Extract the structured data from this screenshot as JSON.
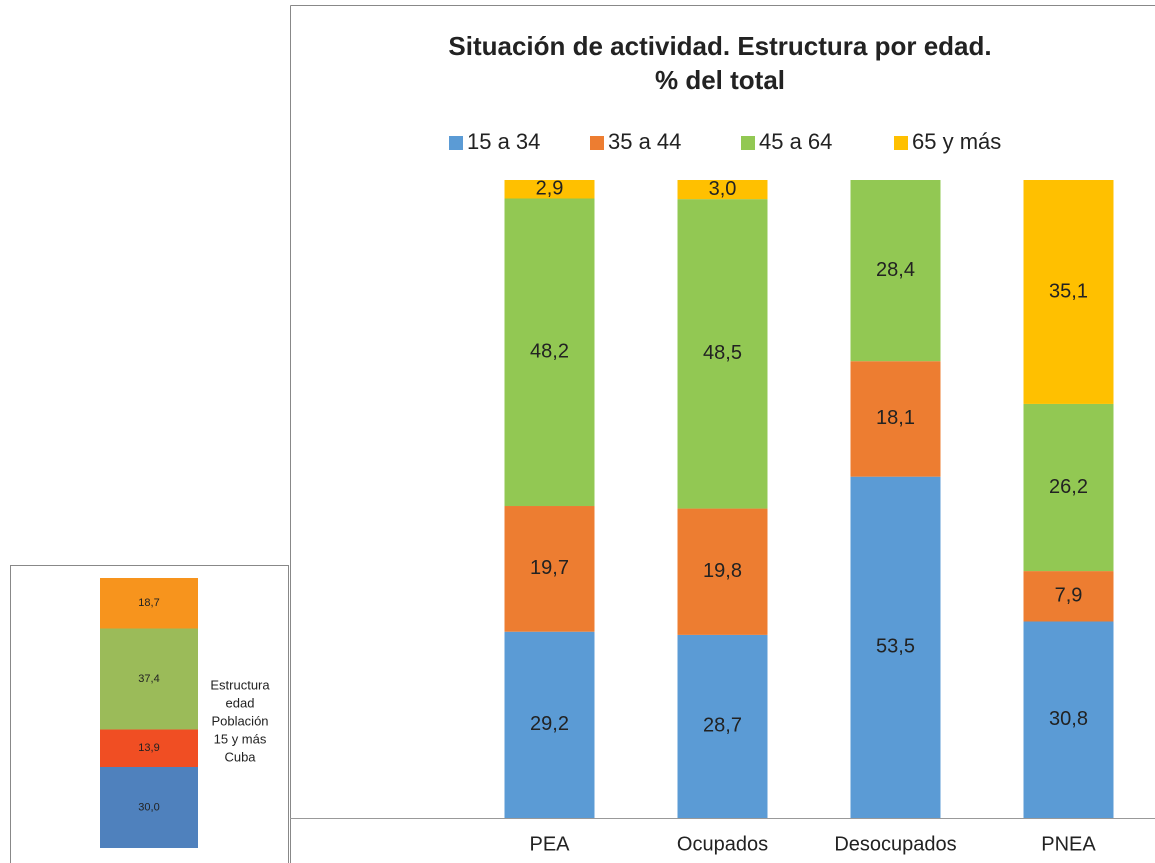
{
  "chart_data": [
    {
      "type": "bar",
      "stacked": true,
      "title": [
        "Situación de actividad. Estructura por edad.",
        "% del total"
      ],
      "categories": [
        null,
        "PEA",
        "Ocupados",
        "Desocupados",
        "PNEA"
      ],
      "ylim": [
        0,
        100
      ],
      "legend": "top",
      "series": [
        {
          "name": "15 a 34",
          "color": "#5b9bd5",
          "values": [
            null,
            29.2,
            28.7,
            53.5,
            30.8
          ],
          "value_labels": [
            null,
            "29,2",
            "28,7",
            "53,5",
            "30,8"
          ]
        },
        {
          "name": "35 a 44",
          "color": "#ed7d31",
          "values": [
            null,
            19.7,
            19.8,
            18.1,
            7.9
          ],
          "value_labels": [
            null,
            "19,7",
            "19,8",
            "18,1",
            "7,9"
          ]
        },
        {
          "name": "45 a 64",
          "color": "#92c853",
          "values": [
            null,
            48.2,
            48.5,
            28.4,
            26.2
          ],
          "value_labels": [
            null,
            "48,2",
            "48,5",
            "28,4",
            "26,2"
          ]
        },
        {
          "name": "65 y más",
          "color": "#ffc000",
          "values": [
            null,
            2.9,
            3.0,
            null,
            35.1
          ],
          "value_labels": [
            null,
            "2,9",
            "3,0",
            null,
            "35,1"
          ]
        }
      ]
    },
    {
      "type": "bar",
      "stacked": true,
      "title": [
        "Estructura",
        "edad",
        "Población",
        "15 y más",
        "Cuba"
      ],
      "categories": [
        null
      ],
      "ylim": [
        0,
        100
      ],
      "series": [
        {
          "color": "#4f81bd",
          "values": [
            30.0
          ],
          "value_labels": [
            "30,0"
          ]
        },
        {
          "color": "#f04e23",
          "values": [
            13.9
          ],
          "value_labels": [
            "13,9"
          ]
        },
        {
          "color": "#9bbb59",
          "values": [
            37.4
          ],
          "value_labels": [
            "37,4"
          ]
        },
        {
          "color": "#f7941d",
          "values": [
            18.7
          ],
          "value_labels": [
            "18,7"
          ]
        }
      ]
    }
  ]
}
